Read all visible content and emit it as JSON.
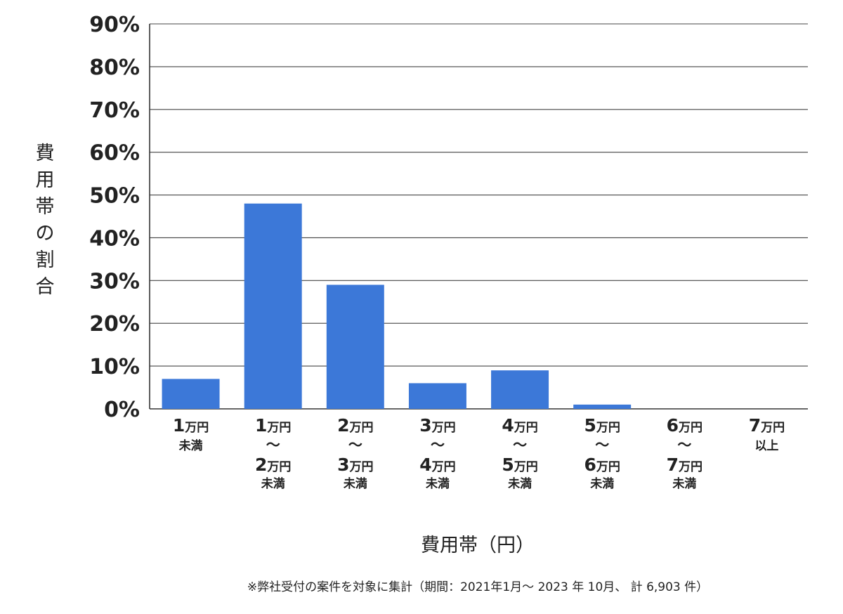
{
  "chart_data": {
    "type": "bar",
    "ylabel": "費用帯の割合",
    "xlabel": "費用帯（円）",
    "ylim": [
      0,
      90
    ],
    "yticks": [
      "0%",
      "10%",
      "20%",
      "30%",
      "40%",
      "50%",
      "60%",
      "70%",
      "80%",
      "90%"
    ],
    "grid": true,
    "bar_color": "#3c78d8",
    "categories": [
      [
        "1万円",
        "未満"
      ],
      [
        "1万円",
        "〜",
        "2万円",
        "未満"
      ],
      [
        "2万円",
        "〜",
        "3万円",
        "未満"
      ],
      [
        "3万円",
        "〜",
        "4万円",
        "未満"
      ],
      [
        "4万円",
        "〜",
        "5万円",
        "未満"
      ],
      [
        "5万円",
        "〜",
        "6万円",
        "未満"
      ],
      [
        "6万円",
        "〜",
        "7万円",
        "未満"
      ],
      [
        "7万円",
        "以上"
      ]
    ],
    "values": [
      7,
      48,
      29,
      6,
      9,
      1,
      0,
      0
    ],
    "footnote": "※弊社受付の案件を対象に集計（期間：2021年1月〜 2023 年 10月、 計 6,903 件）"
  }
}
